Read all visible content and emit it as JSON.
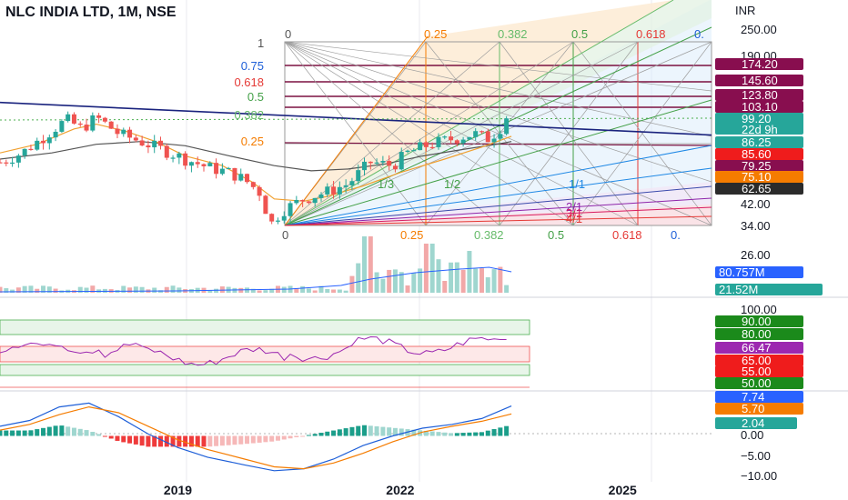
{
  "header": {
    "title": "NLC INDIA LTD, 1M, NSE",
    "currency": "INR"
  },
  "colors": {
    "up": "#26a69a",
    "down": "#ef5350",
    "ma_fast": "#f0a030",
    "ma_slow": "#555555",
    "trendline": "#1a237e",
    "rsi": "#9c27b0",
    "macd": "#1e5fd8",
    "signal": "#f57c00"
  },
  "chart_data": [
    {
      "type": "candlestick",
      "panel": "price",
      "y_scale": "log",
      "ylim": [
        30,
        260
      ],
      "price_ticks": [
        250.0,
        190.0,
        42.0,
        34.0
      ],
      "x_ticks": [
        "2019",
        "2022",
        "2025"
      ],
      "x_tick_dates": [
        2019.0,
        2022.0,
        2025.0
      ],
      "xlim": [
        2016.6,
        2026.2
      ],
      "ma_fast": [
        [
          2016.6,
          72
        ],
        [
          2017.1,
          78
        ],
        [
          2017.6,
          90
        ],
        [
          2017.9,
          94
        ],
        [
          2018.3,
          88
        ],
        [
          2018.7,
          80
        ],
        [
          2019.1,
          70
        ],
        [
          2019.6,
          64
        ],
        [
          2020.0,
          55
        ],
        [
          2020.3,
          47
        ],
        [
          2020.7,
          46
        ],
        [
          2021.0,
          48
        ],
        [
          2021.5,
          53
        ],
        [
          2022.0,
          60
        ],
        [
          2022.6,
          68
        ],
        [
          2023.1,
          76
        ],
        [
          2023.5,
          84
        ]
      ],
      "ma_slow": [
        [
          2016.6,
          68
        ],
        [
          2017.3,
          72
        ],
        [
          2017.9,
          78
        ],
        [
          2018.5,
          80
        ],
        [
          2019.1,
          77
        ],
        [
          2019.7,
          70
        ],
        [
          2020.3,
          64
        ],
        [
          2020.8,
          61
        ],
        [
          2021.3,
          62
        ],
        [
          2021.8,
          65
        ],
        [
          2022.3,
          70
        ],
        [
          2022.8,
          74
        ],
        [
          2023.3,
          78
        ],
        [
          2023.5,
          80
        ]
      ],
      "trendline": [
        [
          2016.6,
          115
        ],
        [
          2026.2,
          85
        ]
      ],
      "price_labels": [
        {
          "label": "174.20",
          "color": "#880e4f"
        },
        {
          "label": "145.60",
          "color": "#880e4f"
        },
        {
          "label": "123.80",
          "color": "#880e4f"
        },
        {
          "label": "103.10",
          "color": "#880e4f"
        },
        {
          "label": "99.20",
          "color": "#26a69a",
          "sub": "22d 9h"
        },
        {
          "label": "86.25",
          "color": "#26a69a"
        },
        {
          "label": "85.60",
          "color": "#ef1c1c"
        },
        {
          "label": "79.25",
          "color": "#880e4f"
        },
        {
          "label": "75.10",
          "color": "#f57c00"
        },
        {
          "label": "62.65",
          "color": "#2b2b2b"
        }
      ],
      "fib_levels_left": [
        {
          "label": "0.75",
          "color": "#1e5fd8"
        },
        {
          "label": "0.618",
          "color": "#e53935"
        },
        {
          "label": "0.5",
          "color": "#43a047"
        },
        {
          "label": "0.382",
          "color": "#66bb6a"
        },
        {
          "label": "0.25",
          "color": "#f57c00"
        }
      ],
      "fib_top_labels": [
        {
          "label": "0",
          "color": "#555555"
        },
        {
          "label": "0.25",
          "color": "#f57c00"
        },
        {
          "label": "0.382",
          "color": "#66bb6a"
        },
        {
          "label": "0.5",
          "color": "#43a047"
        },
        {
          "label": "0.618",
          "color": "#e53935"
        },
        {
          "label": "0.",
          "color": "#1e5fd8"
        }
      ],
      "fib_box_corner_labels": [
        "1",
        "0",
        "0"
      ],
      "fan_labels": [
        "1/3",
        "1/2",
        "1/1",
        "2/1",
        "3/1",
        "4/1"
      ]
    },
    {
      "type": "bar",
      "panel": "volume",
      "y_ticks": [
        26.0
      ],
      "labels": [
        {
          "label": "80.757M",
          "color": "#2962ff"
        },
        {
          "label": "21.52M",
          "color": "#26a69a"
        }
      ]
    },
    {
      "type": "line",
      "panel": "rsi",
      "ylim": [
        0,
        100
      ],
      "y_ticks": [
        100.0
      ],
      "upper_band": [
        80,
        90
      ],
      "lower_band": [
        50,
        55
      ],
      "labels": [
        {
          "label": "90.00",
          "color": "#1b8a1b"
        },
        {
          "label": "80.00",
          "color": "#1b8a1b"
        },
        {
          "label": "66.47",
          "color": "#9c27b0"
        },
        {
          "label": "65.00",
          "color": "#ef1c1c"
        },
        {
          "label": "55.00",
          "color": "#ef1c1c"
        },
        {
          "label": "50.00",
          "color": "#1b8a1b"
        }
      ]
    },
    {
      "type": "line",
      "panel": "macd",
      "ylim": [
        -10,
        10
      ],
      "y_ticks": [
        0.0,
        -5.0,
        -10.0
      ],
      "labels": [
        {
          "label": "7.74",
          "color": "#2962ff"
        },
        {
          "label": "5.70",
          "color": "#f57c00"
        },
        {
          "label": "2.04",
          "color": "#26a69a"
        }
      ]
    }
  ]
}
